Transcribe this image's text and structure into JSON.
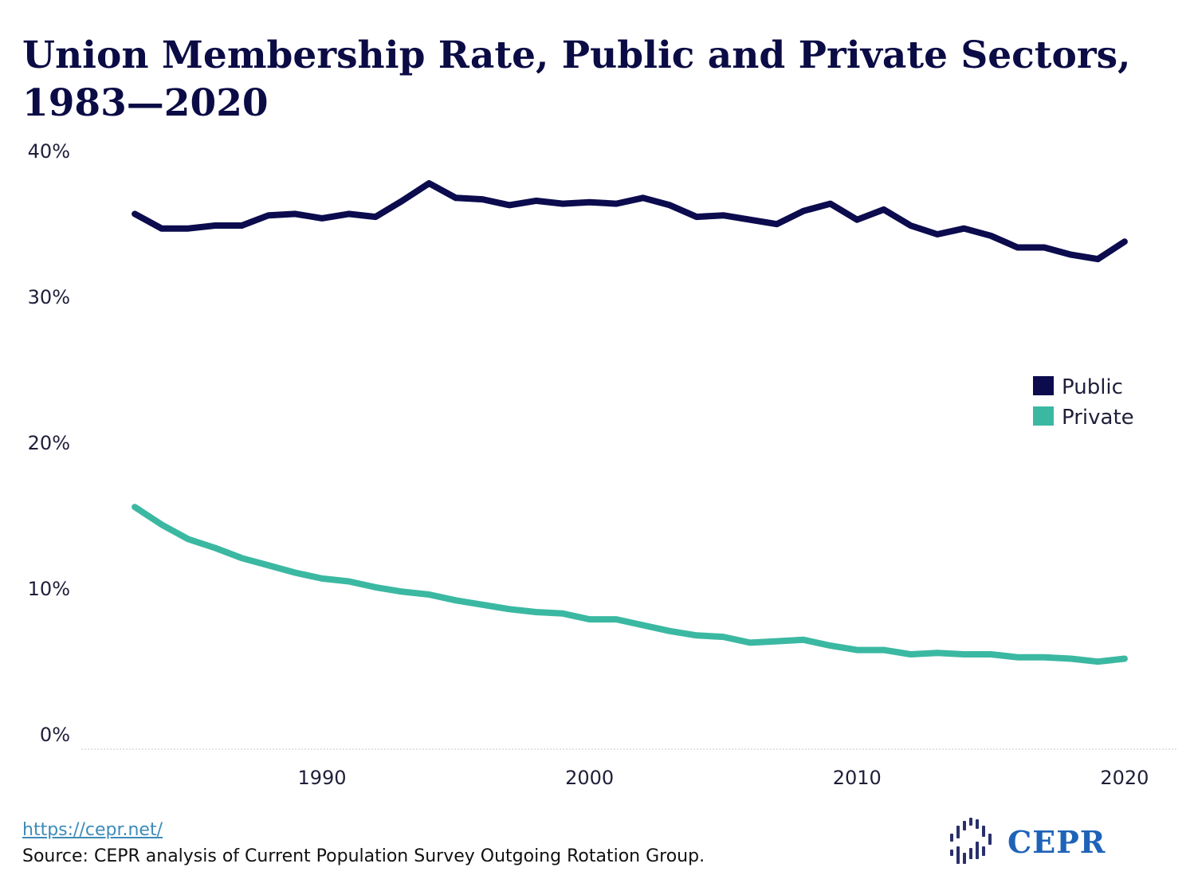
{
  "title": "Union Membership Rate, Public and Private Sectors, 1983—2020",
  "footer": {
    "url": "https://cepr.net/",
    "source": "Source: CEPR analysis of Current Population Survey Outgoing Rotation Group."
  },
  "logo": {
    "text": "CEPR",
    "icon": "cepr-logo-icon"
  },
  "colors": {
    "public": "#0b0b4e",
    "private": "#3bb8a2",
    "title": "#0b0b45",
    "logo": "#1e63b8"
  },
  "chart_data": {
    "type": "line",
    "title": "Union Membership Rate, Public and Private Sectors, 1983—2020",
    "xlabel": "",
    "ylabel": "",
    "ylim": [
      0,
      40
    ],
    "xlim": [
      1981,
      2022
    ],
    "y_ticks": [
      "0%",
      "10%",
      "20%",
      "30%",
      "40%"
    ],
    "y_tick_values": [
      0,
      10,
      20,
      30,
      40
    ],
    "x_ticks": [
      "1990",
      "2000",
      "2010",
      "2020"
    ],
    "x_tick_values": [
      1990,
      2000,
      2010,
      2020
    ],
    "legend": {
      "position": "right",
      "entries": [
        "Public",
        "Private"
      ]
    },
    "grid": false,
    "x": [
      1983,
      1984,
      1985,
      1986,
      1987,
      1988,
      1989,
      1990,
      1991,
      1992,
      1993,
      1994,
      1995,
      1996,
      1997,
      1998,
      1999,
      2000,
      2001,
      2002,
      2003,
      2004,
      2005,
      2006,
      2007,
      2008,
      2009,
      2010,
      2011,
      2012,
      2013,
      2014,
      2015,
      2016,
      2017,
      2018,
      2019,
      2020
    ],
    "series": [
      {
        "name": "Public",
        "color": "#0b0b4e",
        "values": [
          36.7,
          35.7,
          35.7,
          35.9,
          35.9,
          36.6,
          36.7,
          36.4,
          36.7,
          36.5,
          37.6,
          38.8,
          37.8,
          37.7,
          37.3,
          37.6,
          37.4,
          37.5,
          37.4,
          37.8,
          37.3,
          36.5,
          36.6,
          36.3,
          36.0,
          36.9,
          37.4,
          36.3,
          37.0,
          35.9,
          35.3,
          35.7,
          35.2,
          34.4,
          34.4,
          33.9,
          33.6,
          34.8
        ]
      },
      {
        "name": "Private",
        "color": "#3bb8a2",
        "values": [
          16.6,
          15.4,
          14.4,
          13.8,
          13.1,
          12.6,
          12.1,
          11.7,
          11.5,
          11.1,
          10.8,
          10.6,
          10.2,
          9.9,
          9.6,
          9.4,
          9.3,
          8.9,
          8.9,
          8.5,
          8.1,
          7.8,
          7.7,
          7.3,
          7.4,
          7.5,
          7.1,
          6.8,
          6.8,
          6.5,
          6.6,
          6.5,
          6.5,
          6.3,
          6.3,
          6.2,
          6.0,
          6.2
        ]
      }
    ]
  }
}
